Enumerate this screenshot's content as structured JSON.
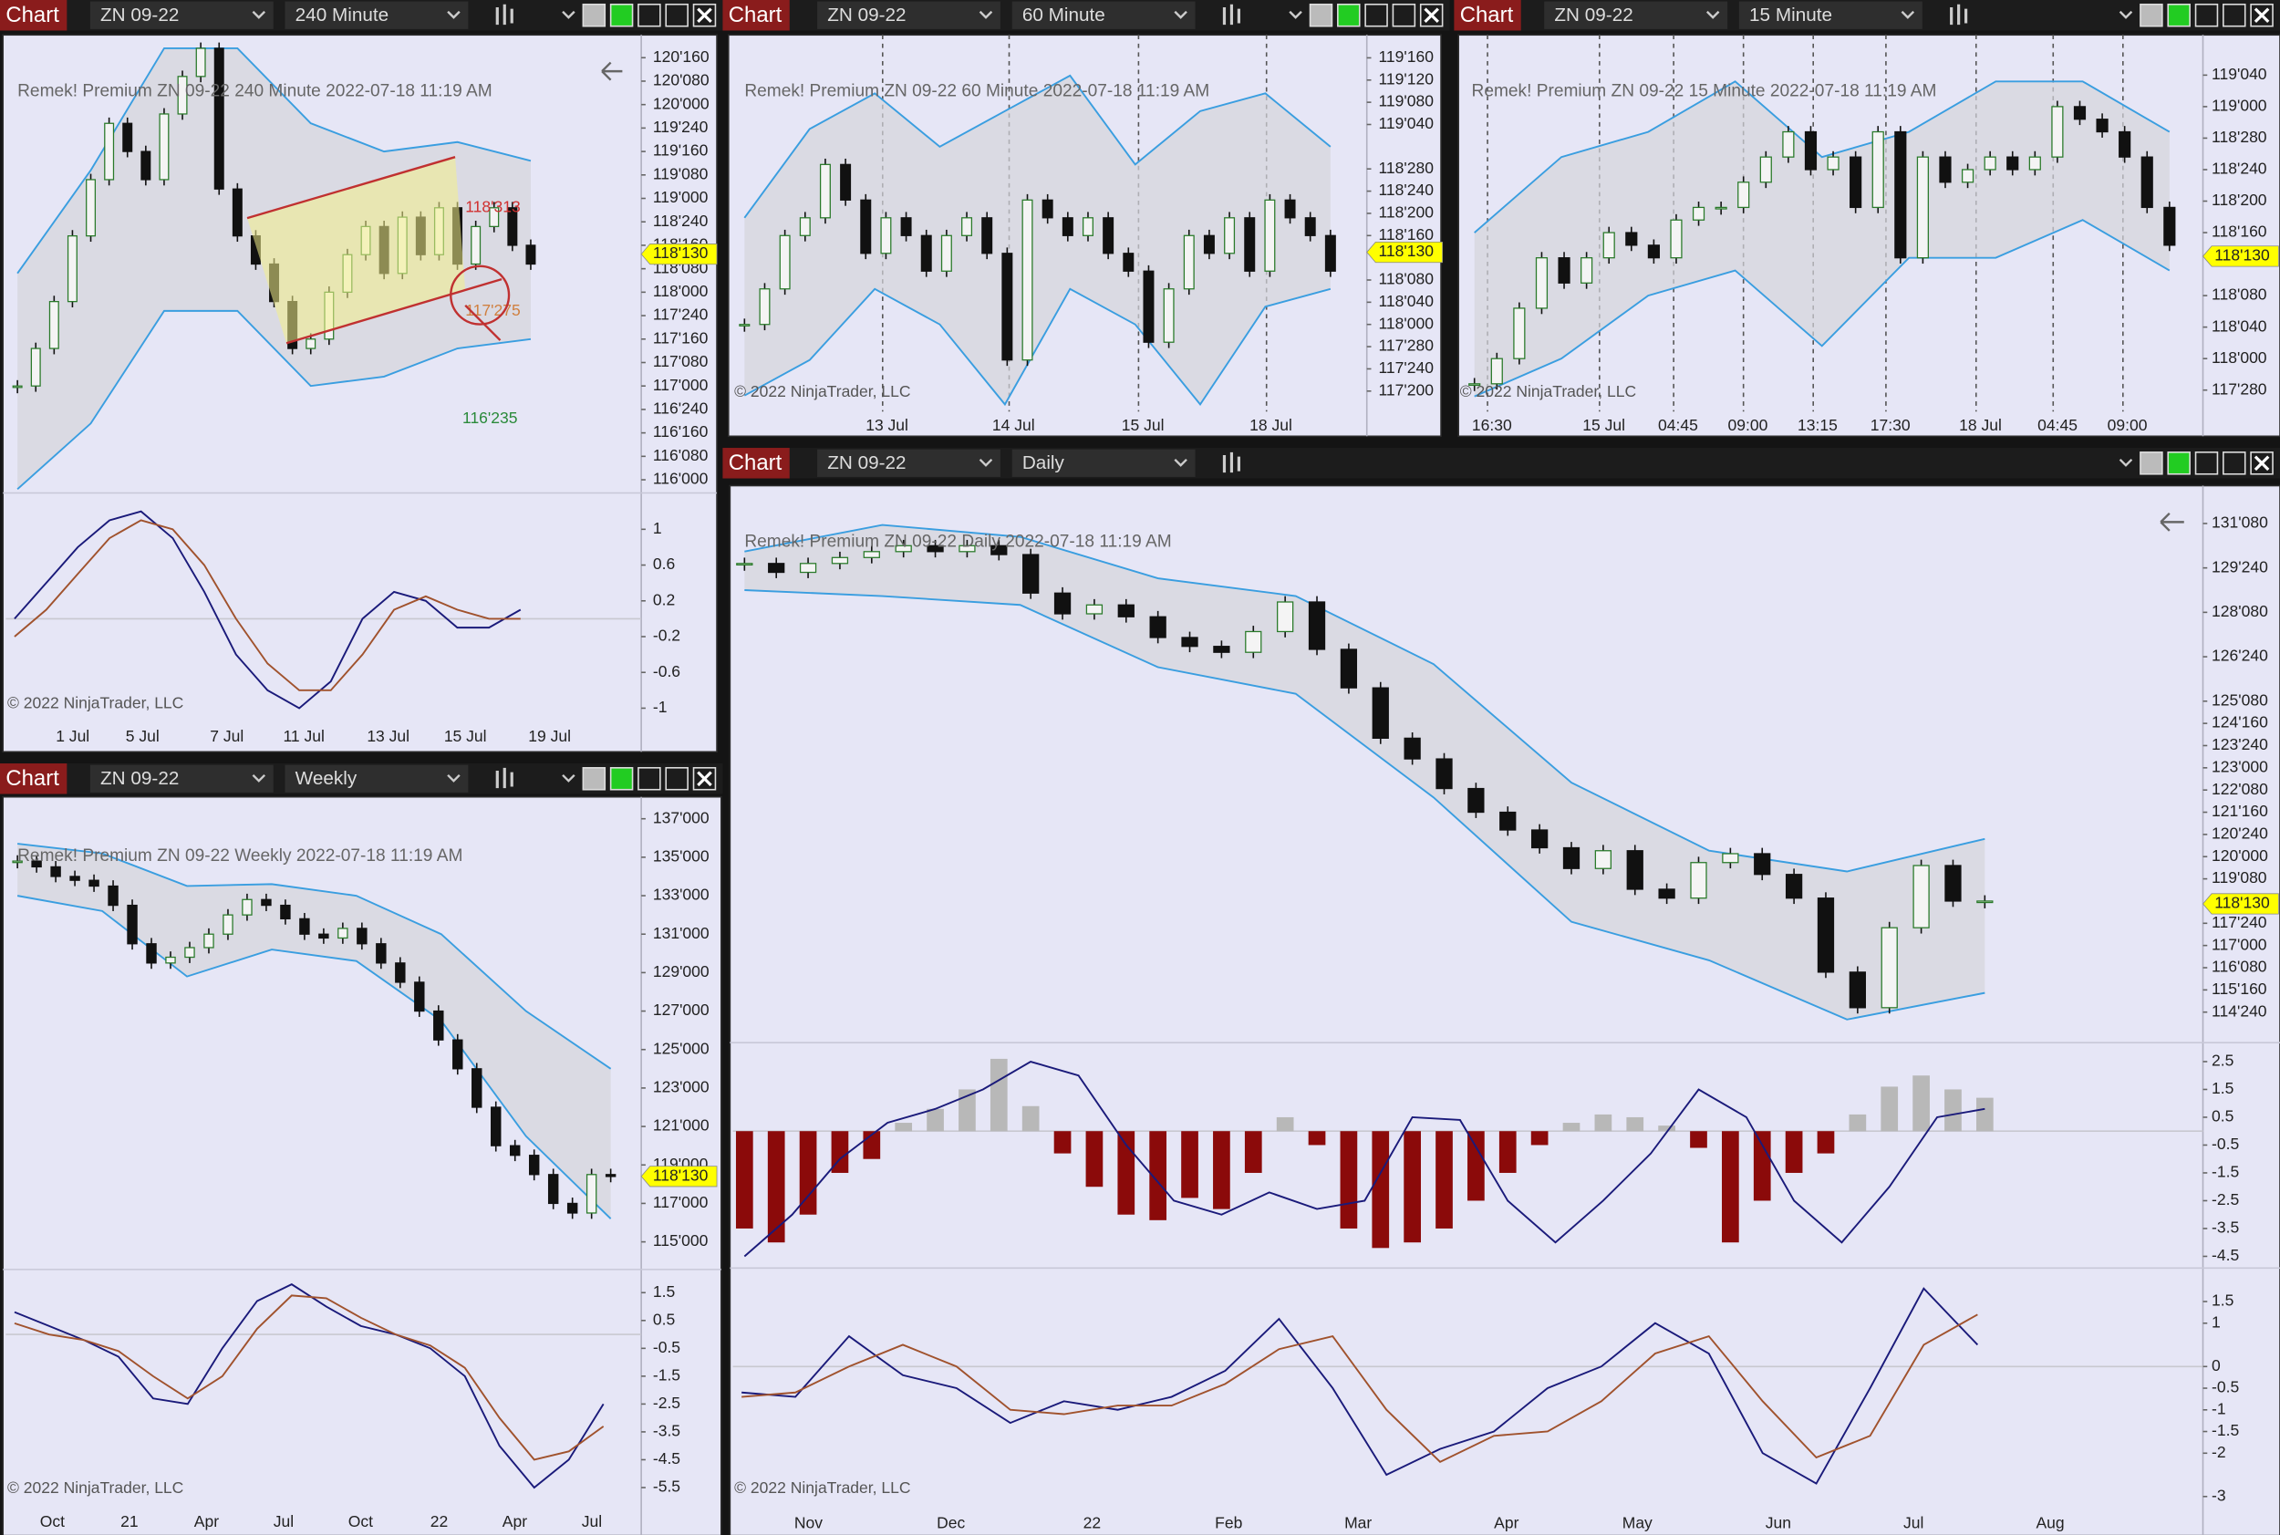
{
  "windows": [
    {
      "toolbar": {
        "tab": "Chart",
        "instrument": "ZN 09-22",
        "interval": "240 Minute"
      },
      "header": "Remek!  Premium  ZN 09-22  240 Minute  2022-07-18 11:19 AM",
      "copyright": "© 2022 NinjaTrader, LLC",
      "price": {
        "ylim": [
          115.875,
          120.65
        ],
        "yticks": [
          {
            "value": 120.5,
            "label": "120'160"
          },
          {
            "value": 120.25,
            "label": "120'080"
          },
          {
            "value": 120,
            "label": "120'000"
          },
          {
            "value": 119.75,
            "label": "119'240"
          },
          {
            "value": 119.5,
            "label": "119'160"
          },
          {
            "value": 119.25,
            "label": "119'080"
          },
          {
            "value": 119,
            "label": "119'000"
          },
          {
            "value": 118.75,
            "label": "118'240"
          },
          {
            "value": 118.5,
            "label": "118'160"
          },
          {
            "value": 118.25,
            "label": "118'080"
          },
          {
            "value": 118,
            "label": "118'000"
          },
          {
            "value": 117.75,
            "label": "117'240"
          },
          {
            "value": 117.5,
            "label": "117'160"
          },
          {
            "value": 117.25,
            "label": "117'080"
          },
          {
            "value": 117,
            "label": "117'000"
          },
          {
            "value": 116.75,
            "label": "116'240"
          },
          {
            "value": 116.5,
            "label": "116'160"
          },
          {
            "value": 116.25,
            "label": "116'080"
          },
          {
            "value": 116,
            "label": "116'000"
          }
        ],
        "closes": [
          117.0,
          117.4,
          117.9,
          118.6,
          119.2,
          119.8,
          119.5,
          119.2,
          119.9,
          120.3,
          120.6,
          119.1,
          118.6,
          118.3,
          117.9,
          117.4,
          117.5,
          118.0,
          118.4,
          118.7,
          118.2,
          118.8,
          118.4,
          118.9,
          118.3,
          118.7,
          118.9,
          118.5,
          118.3
        ],
        "band_upper": [
          118.2,
          119.3,
          120.6,
          120.6,
          119.8,
          119.5,
          119.6,
          119.4
        ],
        "band_lower": [
          115.9,
          116.6,
          117.8,
          117.8,
          117.0,
          117.1,
          117.4,
          117.5
        ],
        "last": {
          "value": 118.40625,
          "label": "118'130"
        }
      },
      "annotations": [
        {
          "text": "118'313",
          "color": "#d03030"
        },
        {
          "text": "117'275",
          "color": "#d08040"
        },
        {
          "text": "116'235",
          "color": "#2a8a3a"
        }
      ],
      "oscillator": {
        "ylim": [
          -1.13,
          1.39
        ],
        "yticks": [
          1,
          0.6,
          0.2,
          -0.2,
          -0.6,
          -1
        ],
        "series": [
          {
            "color": "#1a1a7a",
            "values": [
              0.0,
              0.4,
              0.8,
              1.1,
              1.2,
              0.9,
              0.3,
              -0.4,
              -0.8,
              -1.0,
              -0.7,
              0.0,
              0.3,
              0.2,
              -0.1,
              -0.1,
              0.1
            ]
          },
          {
            "color": "#a0522d",
            "values": [
              -0.2,
              0.1,
              0.5,
              0.9,
              1.1,
              1.0,
              0.6,
              0.0,
              -0.5,
              -0.8,
              -0.8,
              -0.4,
              0.1,
              0.25,
              0.1,
              0.0,
              0.0
            ]
          }
        ]
      },
      "xticks": [
        "1 Jul",
        "5 Jul",
        "7 Jul",
        "11 Jul",
        "13 Jul",
        "15 Jul",
        "19 Jul"
      ]
    },
    {
      "toolbar": {
        "tab": "Chart",
        "instrument": "ZN 09-22",
        "interval": "60 Minute"
      },
      "header": "Remek!  Premium  ZN 09-22  60 Minute  2022-07-18 11:19 AM",
      "copyright": "© 2022 NinjaTrader, LLC",
      "price": {
        "ylim": [
          117.51,
          119.58
        ],
        "yticks": [
          {
            "value": 119.5,
            "label": "119'160"
          },
          {
            "value": 119.375,
            "label": "119'120"
          },
          {
            "value": 119.25,
            "label": "119'080"
          },
          {
            "value": 119.125,
            "label": "119'040"
          },
          {
            "value": 118.875,
            "label": "118'280"
          },
          {
            "value": 118.75,
            "label": "118'240"
          },
          {
            "value": 118.625,
            "label": "118'200"
          },
          {
            "value": 118.5,
            "label": "118'160"
          },
          {
            "value": 118.25,
            "label": "118'080"
          },
          {
            "value": 118.125,
            "label": "118'040"
          },
          {
            "value": 118,
            "label": "118'000"
          },
          {
            "value": 117.875,
            "label": "117'280"
          },
          {
            "value": 117.75,
            "label": "117'240"
          },
          {
            "value": 117.625,
            "label": "117'200"
          }
        ],
        "closes": [
          118.0,
          118.2,
          118.5,
          118.6,
          118.9,
          118.7,
          118.4,
          118.6,
          118.5,
          118.3,
          118.5,
          118.6,
          118.4,
          117.8,
          118.7,
          118.6,
          118.5,
          118.6,
          118.4,
          118.3,
          117.9,
          118.2,
          118.5,
          118.4,
          118.6,
          118.3,
          118.7,
          118.6,
          118.5,
          118.3
        ],
        "band_upper": [
          118.6,
          119.1,
          119.3,
          119.0,
          119.2,
          119.4,
          118.9,
          119.2,
          119.3,
          119.0
        ],
        "band_lower": [
          117.6,
          117.8,
          118.2,
          118.0,
          117.55,
          118.2,
          118.0,
          117.55,
          118.1,
          118.2
        ],
        "last": {
          "value": 118.40625,
          "label": "118'130"
        }
      },
      "xticks": [
        "13 Jul",
        "14 Jul",
        "15 Jul",
        "18 Jul"
      ]
    },
    {
      "toolbar": {
        "tab": "Chart",
        "instrument": "ZN 09-22",
        "interval": "15 Minute"
      },
      "header": "Remek!  Premium  ZN 09-22  15 Minute  2022-07-18 11:19 AM",
      "copyright": "© 2022 NinjaTrader, LLC",
      "price": {
        "ylim": [
          117.79,
          119.25
        ],
        "yticks": [
          {
            "value": 119.125,
            "label": "119'040"
          },
          {
            "value": 119,
            "label": "119'000"
          },
          {
            "value": 118.875,
            "label": "118'280"
          },
          {
            "value": 118.75,
            "label": "118'240"
          },
          {
            "value": 118.625,
            "label": "118'200"
          },
          {
            "value": 118.5,
            "label": "118'160"
          },
          {
            "value": 118.25,
            "label": "118'080"
          },
          {
            "value": 118.125,
            "label": "118'040"
          },
          {
            "value": 118,
            "label": "118'000"
          },
          {
            "value": 117.875,
            "label": "117'280"
          }
        ],
        "closes": [
          117.9,
          118.0,
          118.2,
          118.4,
          118.3,
          118.4,
          118.5,
          118.45,
          118.4,
          118.55,
          118.6,
          118.6,
          118.7,
          118.8,
          118.9,
          118.75,
          118.8,
          118.6,
          118.9,
          118.4,
          118.8,
          118.7,
          118.75,
          118.8,
          118.75,
          118.8,
          119.0,
          118.95,
          118.9,
          118.8,
          118.6,
          118.45
        ],
        "band_upper": [
          118.5,
          118.8,
          118.9,
          119.1,
          118.8,
          118.9,
          119.1,
          119.1,
          118.9
        ],
        "band_lower": [
          117.85,
          118.0,
          118.25,
          118.35,
          118.05,
          118.4,
          118.4,
          118.55,
          118.35
        ],
        "last": {
          "value": 118.40625,
          "label": "118'130"
        }
      },
      "xticks": [
        "16:30",
        "15 Jul",
        "04:45",
        "09:00",
        "13:15",
        "17:30",
        "18 Jul",
        "04:45",
        "09:00"
      ]
    },
    {
      "toolbar": {
        "tab": "Chart",
        "instrument": "ZN 09-22",
        "interval": "Weekly"
      },
      "header": "Remek!  Premium  ZN 09-22  Weekly  2022-07-18 11:19 AM",
      "copyright": "© 2022 NinjaTrader, LLC",
      "price": {
        "ylim": [
          113.64,
          137.76
        ],
        "yticks": [
          {
            "value": 137,
            "label": "137'000"
          },
          {
            "value": 135,
            "label": "135'000"
          },
          {
            "value": 133,
            "label": "133'000"
          },
          {
            "value": 131,
            "label": "131'000"
          },
          {
            "value": 129,
            "label": "129'000"
          },
          {
            "value": 127,
            "label": "127'000"
          },
          {
            "value": 125,
            "label": "125'000"
          },
          {
            "value": 123,
            "label": "123'000"
          },
          {
            "value": 121,
            "label": "121'000"
          },
          {
            "value": 119,
            "label": "119'000"
          },
          {
            "value": 117,
            "label": "117'000"
          },
          {
            "value": 115,
            "label": "115'000"
          }
        ],
        "closes": [
          134.8,
          134.5,
          134.0,
          133.8,
          133.5,
          132.5,
          130.5,
          129.5,
          129.8,
          130.3,
          131.0,
          132.0,
          132.8,
          132.5,
          131.8,
          131.0,
          130.8,
          131.3,
          130.5,
          129.5,
          128.5,
          127.0,
          125.5,
          124.0,
          122.0,
          120.0,
          119.5,
          118.5,
          117.0,
          116.5,
          118.5,
          118.4
        ],
        "band_upper": [
          135.7,
          135.2,
          133.5,
          133.6,
          133.0,
          131.0,
          127.0,
          124.0
        ],
        "band_lower": [
          133.0,
          132.2,
          128.8,
          130.2,
          129.6,
          126.5,
          120.5,
          116.2
        ],
        "last": {
          "value": 118.40625,
          "label": "118'130"
        }
      },
      "oscillator": {
        "ylim": [
          -6.18,
          2.28
        ],
        "yticks": [
          1.5,
          0.5,
          -0.5,
          -1.5,
          -2.5,
          -3.5,
          -4.5,
          -5.5
        ],
        "series": [
          {
            "color": "#1a1a7a",
            "values": [
              0.8,
              0.3,
              -0.2,
              -0.8,
              -2.3,
              -2.5,
              -0.5,
              1.2,
              1.8,
              1.0,
              0.3,
              0.0,
              -0.5,
              -1.5,
              -4.0,
              -5.5,
              -4.5,
              -2.5
            ]
          },
          {
            "color": "#a0522d",
            "values": [
              0.4,
              0.0,
              -0.2,
              -0.6,
              -1.5,
              -2.3,
              -1.5,
              0.2,
              1.4,
              1.3,
              0.6,
              0.0,
              -0.4,
              -1.2,
              -3.0,
              -4.5,
              -4.2,
              -3.3
            ]
          }
        ]
      },
      "xticks": [
        "Oct",
        "21",
        "Apr",
        "Jul",
        "Oct",
        "22",
        "Apr",
        "Jul"
      ]
    },
    {
      "toolbar": {
        "tab": "Chart",
        "instrument": "ZN 09-22",
        "interval": "Daily"
      },
      "header": "Remek!  Premium  ZN 09-22  Daily  2022-07-18 11:19 AM",
      "copyright": "© 2022 NinjaTrader, LLC",
      "price": {
        "ylim": [
          113.72,
          132.33
        ],
        "yticks": [
          {
            "value": 131.25,
            "label": "131'080"
          },
          {
            "value": 129.75,
            "label": "129'240"
          },
          {
            "value": 128.25,
            "label": "128'080"
          },
          {
            "value": 126.75,
            "label": "126'240"
          },
          {
            "value": 125.25,
            "label": "125'080"
          },
          {
            "value": 124.5,
            "label": "124'160"
          },
          {
            "value": 123.75,
            "label": "123'240"
          },
          {
            "value": 123,
            "label": "123'000"
          },
          {
            "value": 122.25,
            "label": "122'080"
          },
          {
            "value": 121.5,
            "label": "121'160"
          },
          {
            "value": 120.75,
            "label": "120'240"
          },
          {
            "value": 120,
            "label": "120'000"
          },
          {
            "value": 119.25,
            "label": "119'080"
          },
          {
            "value": 117.75,
            "label": "117'240"
          },
          {
            "value": 117,
            "label": "117'000"
          },
          {
            "value": 116.25,
            "label": "116'080"
          },
          {
            "value": 115.5,
            "label": "115'160"
          },
          {
            "value": 114.75,
            "label": "114'240"
          }
        ],
        "closes": [
          129.9,
          129.6,
          129.9,
          130.1,
          130.3,
          130.5,
          130.3,
          130.5,
          130.2,
          128.9,
          128.2,
          128.5,
          128.1,
          127.4,
          127.1,
          126.9,
          127.6,
          128.6,
          127.0,
          125.7,
          124.0,
          123.3,
          122.3,
          121.5,
          120.9,
          120.3,
          119.6,
          120.2,
          118.9,
          118.6,
          119.8,
          120.1,
          119.4,
          118.6,
          116.1,
          114.9,
          117.6,
          119.7,
          118.5,
          118.5
        ],
        "band_upper": [
          130.3,
          131.2,
          130.8,
          129.4,
          128.8,
          126.5,
          122.5,
          120.2,
          119.5,
          120.6
        ],
        "band_lower": [
          129.0,
          128.8,
          128.5,
          126.4,
          125.5,
          122.0,
          117.8,
          116.5,
          114.5,
          115.4
        ],
        "last": {
          "value": 118.40625,
          "label": "118'130"
        }
      },
      "histogram": {
        "ylim": [
          -4.92,
          3.13
        ],
        "yticks": [
          2.5,
          1.5,
          0.5,
          -0.5,
          -1.5,
          -2.5,
          -3.5,
          -4.5
        ],
        "positive_color": "#b8b8b8",
        "negative_color": "#8b0a0a",
        "values": [
          -3.5,
          -4.0,
          -3.0,
          -1.5,
          -1.0,
          0.3,
          0.8,
          1.5,
          2.6,
          0.9,
          -0.8,
          -2.0,
          -3.0,
          -3.2,
          -2.4,
          -2.8,
          -1.5,
          0.5,
          -0.5,
          -3.5,
          -4.2,
          -4.0,
          -3.5,
          -2.5,
          -1.5,
          -0.5,
          0.3,
          0.6,
          0.5,
          0.2,
          -0.6,
          -4.0,
          -2.5,
          -1.5,
          -0.8,
          0.6,
          1.6,
          2.0,
          1.5,
          1.2
        ],
        "line": {
          "color": "#1a1a7a",
          "values": [
            -4.5,
            -3.0,
            -1.0,
            0.3,
            0.8,
            1.5,
            2.5,
            2.0,
            -0.5,
            -2.5,
            -3.0,
            -2.2,
            -2.8,
            -2.5,
            0.5,
            0.4,
            -2.5,
            -4.0,
            -2.5,
            -0.8,
            1.5,
            0.5,
            -2.5,
            -4.0,
            -2.0,
            0.5,
            0.8
          ]
        }
      },
      "oscillator": {
        "ylim": [
          -3.13,
          2.24
        ],
        "yticks": [
          1.5,
          1,
          0,
          -0.5,
          -1,
          -1.5,
          -2,
          -3
        ],
        "series": [
          {
            "color": "#1a1a7a",
            "values": [
              -0.6,
              -0.7,
              0.7,
              -0.2,
              -0.5,
              -1.3,
              -0.8,
              -1.0,
              -0.7,
              -0.1,
              1.1,
              -0.5,
              -2.5,
              -1.9,
              -1.5,
              -0.5,
              0.0,
              1.0,
              0.3,
              -2.0,
              -2.7,
              -0.5,
              1.8,
              0.5
            ]
          },
          {
            "color": "#a0522d",
            "values": [
              -0.7,
              -0.6,
              0.0,
              0.5,
              0.0,
              -1.0,
              -1.1,
              -0.9,
              -0.9,
              -0.4,
              0.4,
              0.7,
              -1.0,
              -2.2,
              -1.6,
              -1.5,
              -0.8,
              0.3,
              0.7,
              -0.8,
              -2.1,
              -1.6,
              0.5,
              1.2
            ]
          }
        ]
      },
      "xticks": [
        "Nov",
        "Dec",
        "22",
        "Feb",
        "Mar",
        "Apr",
        "May",
        "Jun",
        "Jul",
        "Aug"
      ]
    }
  ]
}
